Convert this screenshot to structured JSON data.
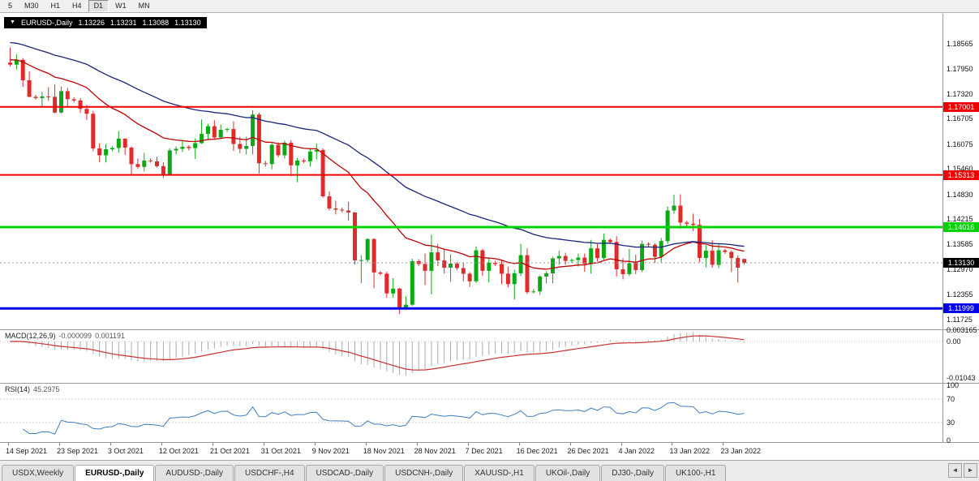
{
  "toolbar": {
    "timeframes": [
      {
        "label": "5",
        "active": false
      },
      {
        "label": "M30",
        "active": false
      },
      {
        "label": "H1",
        "active": false
      },
      {
        "label": "H4",
        "active": false
      },
      {
        "label": "D1",
        "active": true
      },
      {
        "label": "W1",
        "active": false
      },
      {
        "label": "MN",
        "active": false
      }
    ]
  },
  "chart": {
    "symbol_bar": {
      "collapse_icon": "▼",
      "title": "EURUSD-,Daily",
      "open": "1.13226",
      "high": "1.13231",
      "low": "1.13088",
      "close": "1.13130"
    },
    "price_axis": {
      "ticks": [
        "1.18565",
        "1.17950",
        "1.17320",
        "1.16705",
        "1.16075",
        "1.15460",
        "1.14830",
        "1.14215",
        "1.13585",
        "1.12970",
        "1.12355",
        "1.11725"
      ]
    },
    "levels": [
      {
        "price": 1.17001,
        "label": "1.17001",
        "color": "#F00000",
        "thickness": 2
      },
      {
        "price": 1.15313,
        "label": "1.15313",
        "color": "#F00000",
        "thickness": 2
      },
      {
        "price": 1.14016,
        "label": "1.14016",
        "color": "#00D400",
        "thickness": 3
      },
      {
        "price": 1.11999,
        "label": "1.11999",
        "color": "#0000E8",
        "thickness": 3
      }
    ],
    "current_price": {
      "price": 1.1313,
      "label": "1.13130",
      "bg": "#000000"
    },
    "time_axis": {
      "labels": [
        {
          "text": "14 Sep 2021",
          "index": 0
        },
        {
          "text": "23 Sep 2021",
          "index": 8
        },
        {
          "text": "3 Oct 2021",
          "index": 16
        },
        {
          "text": "12 Oct 2021",
          "index": 24
        },
        {
          "text": "21 Oct 2021",
          "index": 32
        },
        {
          "text": "31 Oct 2021",
          "index": 40
        },
        {
          "text": "9 Nov 2021",
          "index": 48
        },
        {
          "text": "18 Nov 2021",
          "index": 56
        },
        {
          "text": "28 Nov 2021",
          "index": 64
        },
        {
          "text": "7 Dec 2021",
          "index": 72
        },
        {
          "text": "16 Dec 2021",
          "index": 80
        },
        {
          "text": "26 Dec 2021",
          "index": 88
        },
        {
          "text": "4 Jan 2022",
          "index": 96
        },
        {
          "text": "13 Jan 2022",
          "index": 104
        },
        {
          "text": "23 Jan 2022",
          "index": 112
        }
      ]
    }
  },
  "chart_data": {
    "type": "candlestick",
    "symbol": "EURUSD-,Daily",
    "up_color": "#0CA816",
    "down_color": "#E02B2B",
    "y_range": [
      1.115,
      1.1915
    ],
    "ma": [
      {
        "period": 20,
        "color": "#C00000",
        "seed": 1.1818
      },
      {
        "period": 48,
        "color": "#1A2579",
        "seed": 1.1862
      }
    ],
    "candles": [
      [
        1.181,
        1.1847,
        1.18,
        1.1805
      ],
      [
        1.1805,
        1.1831,
        1.1793,
        1.1817
      ],
      [
        1.1817,
        1.1821,
        1.175,
        1.1766
      ],
      [
        1.1766,
        1.1788,
        1.1724,
        1.1725
      ],
      [
        1.1725,
        1.173,
        1.1718,
        1.1722
      ],
      [
        1.1722,
        1.1737,
        1.17,
        1.1726
      ],
      [
        1.1726,
        1.1749,
        1.1715,
        1.1725
      ],
      [
        1.1725,
        1.1756,
        1.1684,
        1.1686
      ],
      [
        1.1686,
        1.175,
        1.1683,
        1.1739
      ],
      [
        1.1739,
        1.1747,
        1.1701,
        1.1719
      ],
      [
        1.1719,
        1.1724,
        1.1711,
        1.1716
      ],
      [
        1.1716,
        1.1722,
        1.1685,
        1.1695
      ],
      [
        1.1695,
        1.1705,
        1.1668,
        1.1683
      ],
      [
        1.1683,
        1.169,
        1.159,
        1.1597
      ],
      [
        1.1597,
        1.161,
        1.1563,
        1.158
      ],
      [
        1.158,
        1.1608,
        1.1562,
        1.1595
      ],
      [
        1.1595,
        1.1602,
        1.159,
        1.1598
      ],
      [
        1.1598,
        1.164,
        1.1586,
        1.1621
      ],
      [
        1.1621,
        1.1622,
        1.1581,
        1.1599
      ],
      [
        1.1599,
        1.1602,
        1.1529,
        1.1558
      ],
      [
        1.1558,
        1.1572,
        1.1546,
        1.1551
      ],
      [
        1.1551,
        1.1586,
        1.154,
        1.1567
      ],
      [
        1.1567,
        1.1572,
        1.1561,
        1.1565
      ],
      [
        1.1565,
        1.1576,
        1.1549,
        1.1553
      ],
      [
        1.1553,
        1.1563,
        1.1524,
        1.1531
      ],
      [
        1.1531,
        1.1597,
        1.1529,
        1.1592
      ],
      [
        1.1592,
        1.1602,
        1.1582,
        1.1596
      ],
      [
        1.1596,
        1.1618,
        1.1588,
        1.1601
      ],
      [
        1.1601,
        1.1605,
        1.1592,
        1.1598
      ],
      [
        1.1598,
        1.1622,
        1.1571,
        1.161
      ],
      [
        1.161,
        1.1669,
        1.1608,
        1.1633
      ],
      [
        1.1633,
        1.1658,
        1.1617,
        1.1652
      ],
      [
        1.1652,
        1.1667,
        1.1621,
        1.1624
      ],
      [
        1.1624,
        1.1656,
        1.162,
        1.1643
      ],
      [
        1.1643,
        1.1648,
        1.1638,
        1.1645
      ],
      [
        1.1645,
        1.1664,
        1.1591,
        1.1608
      ],
      [
        1.1608,
        1.1626,
        1.1585,
        1.1596
      ],
      [
        1.1596,
        1.1626,
        1.1582,
        1.1603
      ],
      [
        1.1603,
        1.1692,
        1.1582,
        1.1681
      ],
      [
        1.1681,
        1.1686,
        1.1535,
        1.156
      ],
      [
        1.156,
        1.1566,
        1.1552,
        1.1558
      ],
      [
        1.1558,
        1.161,
        1.1545,
        1.1606
      ],
      [
        1.1606,
        1.1612,
        1.1575,
        1.158
      ],
      [
        1.158,
        1.1616,
        1.1572,
        1.1611
      ],
      [
        1.1611,
        1.1617,
        1.1528,
        1.1555
      ],
      [
        1.1555,
        1.1573,
        1.1513,
        1.1567
      ],
      [
        1.1567,
        1.1572,
        1.156,
        1.1565
      ],
      [
        1.1565,
        1.1598,
        1.1552,
        1.1589
      ],
      [
        1.1589,
        1.1609,
        1.157,
        1.1593
      ],
      [
        1.1593,
        1.1597,
        1.1475,
        1.1478
      ],
      [
        1.1478,
        1.149,
        1.1443,
        1.1448
      ],
      [
        1.1448,
        1.1467,
        1.1433,
        1.1445
      ],
      [
        1.1445,
        1.145,
        1.1438,
        1.1443
      ],
      [
        1.1443,
        1.1464,
        1.1418,
        1.1438
      ],
      [
        1.1438,
        1.1439,
        1.1309,
        1.1319
      ],
      [
        1.1319,
        1.1332,
        1.1263,
        1.132
      ],
      [
        1.132,
        1.1374,
        1.1314,
        1.1372
      ],
      [
        1.1372,
        1.1374,
        1.125,
        1.1289
      ],
      [
        1.1289,
        1.1293,
        1.1282,
        1.1286
      ],
      [
        1.1286,
        1.1291,
        1.1226,
        1.1237
      ],
      [
        1.1237,
        1.1275,
        1.1226,
        1.1249
      ],
      [
        1.1249,
        1.1251,
        1.1186,
        1.1199
      ],
      [
        1.1199,
        1.123,
        1.1196,
        1.1209
      ],
      [
        1.1209,
        1.1323,
        1.1206,
        1.1317
      ],
      [
        1.1317,
        1.1322,
        1.1305,
        1.131
      ],
      [
        1.131,
        1.1336,
        1.1258,
        1.1293
      ],
      [
        1.1293,
        1.1383,
        1.1235,
        1.1339
      ],
      [
        1.1339,
        1.136,
        1.1305,
        1.1319
      ],
      [
        1.1319,
        1.1348,
        1.1286,
        1.1301
      ],
      [
        1.1301,
        1.1334,
        1.1266,
        1.1311
      ],
      [
        1.1311,
        1.1315,
        1.1295,
        1.13
      ],
      [
        1.13,
        1.1313,
        1.1267,
        1.1286
      ],
      [
        1.1286,
        1.129,
        1.1253,
        1.1267
      ],
      [
        1.1267,
        1.1354,
        1.1263,
        1.1344
      ],
      [
        1.1344,
        1.1348,
        1.128,
        1.1293
      ],
      [
        1.1293,
        1.1324,
        1.1264,
        1.1313
      ],
      [
        1.1313,
        1.1318,
        1.1305,
        1.131
      ],
      [
        1.131,
        1.1319,
        1.126,
        1.1286
      ],
      [
        1.1286,
        1.1303,
        1.1252,
        1.126
      ],
      [
        1.126,
        1.1296,
        1.1222,
        1.1287
      ],
      [
        1.1287,
        1.136,
        1.128,
        1.1332
      ],
      [
        1.1332,
        1.1349,
        1.1236,
        1.124
      ],
      [
        1.124,
        1.1248,
        1.1237,
        1.1242
      ],
      [
        1.1242,
        1.1282,
        1.1234,
        1.1279
      ],
      [
        1.1279,
        1.1292,
        1.1262,
        1.1287
      ],
      [
        1.1287,
        1.1328,
        1.1262,
        1.1324
      ],
      [
        1.1324,
        1.1343,
        1.1308,
        1.133
      ],
      [
        1.133,
        1.1338,
        1.1308,
        1.1318
      ],
      [
        1.1318,
        1.1324,
        1.1313,
        1.132
      ],
      [
        1.132,
        1.1336,
        1.1304,
        1.1326
      ],
      [
        1.1326,
        1.1336,
        1.1291,
        1.131
      ],
      [
        1.131,
        1.137,
        1.1286,
        1.1349
      ],
      [
        1.1349,
        1.136,
        1.1316,
        1.1325
      ],
      [
        1.1325,
        1.1386,
        1.1321,
        1.137
      ],
      [
        1.137,
        1.1373,
        1.136,
        1.1365
      ],
      [
        1.1365,
        1.1379,
        1.1279,
        1.1297
      ],
      [
        1.1297,
        1.1324,
        1.1272,
        1.1285
      ],
      [
        1.1285,
        1.1347,
        1.128,
        1.1312
      ],
      [
        1.1312,
        1.1333,
        1.1285,
        1.1295
      ],
      [
        1.1295,
        1.1368,
        1.129,
        1.136
      ],
      [
        1.136,
        1.1364,
        1.1352,
        1.1358
      ],
      [
        1.1358,
        1.1362,
        1.1313,
        1.1328
      ],
      [
        1.1328,
        1.1375,
        1.1314,
        1.1367
      ],
      [
        1.1367,
        1.1453,
        1.136,
        1.1443
      ],
      [
        1.1443,
        1.1482,
        1.1435,
        1.1455
      ],
      [
        1.1455,
        1.1483,
        1.1398,
        1.1413
      ],
      [
        1.1413,
        1.1418,
        1.1404,
        1.141
      ],
      [
        1.141,
        1.1435,
        1.1392,
        1.1407
      ],
      [
        1.1407,
        1.1422,
        1.1314,
        1.1325
      ],
      [
        1.1325,
        1.1357,
        1.1302,
        1.1343
      ],
      [
        1.1343,
        1.1369,
        1.1301,
        1.1308
      ],
      [
        1.1308,
        1.136,
        1.13,
        1.1344
      ],
      [
        1.1344,
        1.1348,
        1.1335,
        1.134
      ],
      [
        1.134,
        1.1344,
        1.129,
        1.1325
      ],
      [
        1.1325,
        1.1331,
        1.1264,
        1.1301
      ],
      [
        1.13226,
        1.13231,
        1.13088,
        1.1313
      ]
    ],
    "indicators": {
      "macd": {
        "name": "MACD(12,26,9)",
        "value_main": "-0.000099",
        "value_signal": "0.001191",
        "fast": 12,
        "slow": 26,
        "signal": 9,
        "histogram_color": "#ABABAB",
        "signal_color": "#C83232",
        "axis_labels": [
          {
            "text": "0.003165",
            "value": 0.003165
          },
          {
            "text": "0.00",
            "value": 0.0
          },
          {
            "text": "-0.01043",
            "value": -0.01043
          }
        ]
      },
      "rsi": {
        "name": "RSI(14)",
        "value": "45.2975",
        "period": 14,
        "color": "#3E7FC1",
        "levels": [
          70,
          30
        ],
        "axis_labels": [
          {
            "text": "100",
            "value": 100
          },
          {
            "text": "70",
            "value": 70
          },
          {
            "text": "30",
            "value": 30
          },
          {
            "text": "0",
            "value": 0
          }
        ]
      }
    }
  },
  "tabs": {
    "left_arrow": "◄",
    "right_arrow": "►",
    "items": [
      {
        "label": "USDX,Weekly",
        "active": false
      },
      {
        "label": "EURUSD-,Daily",
        "active": true
      },
      {
        "label": "AUDUSD-,Daily",
        "active": false
      },
      {
        "label": "USDCHF-,H4",
        "active": false
      },
      {
        "label": "USDCAD-,Daily",
        "active": false
      },
      {
        "label": "USDCNH-,Daily",
        "active": false
      },
      {
        "label": "XAUUSD-,H1",
        "active": false
      },
      {
        "label": "UKOil-,Daily",
        "active": false
      },
      {
        "label": "DJ30-,Daily",
        "active": false
      },
      {
        "label": "UK100-,H1",
        "active": false
      }
    ]
  }
}
